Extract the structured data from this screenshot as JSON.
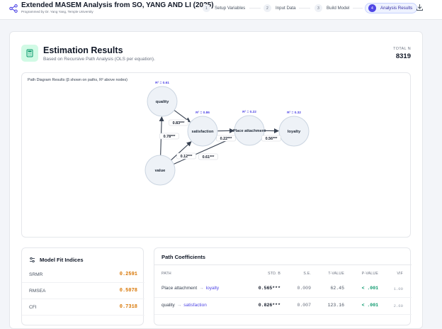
{
  "header": {
    "title": "Extended MASEM Analysis from SO, YANG AND LI (2025)",
    "subtitle": "Programmed by Dr. Yang Yang, Temple University",
    "steps": [
      {
        "num": "1",
        "label": "Setup Variables"
      },
      {
        "num": "2",
        "label": "Input Data"
      },
      {
        "num": "3",
        "label": "Build Model"
      },
      {
        "num": "4",
        "label": "Analysis Results"
      }
    ],
    "active_step": 4
  },
  "results": {
    "title": "Estimation Results",
    "subtitle": "Based on Recursive Path Analysis (OLS per equation).",
    "total_n_label": "TOTAL N",
    "total_n": "8319"
  },
  "diagram": {
    "title": "Path Diagram Results (β shown on paths, R² above nodes)",
    "nodes": [
      {
        "id": "quality",
        "label": "quality",
        "r2": "R² = 0.61"
      },
      {
        "id": "satisfaction",
        "label": "satisfaction",
        "r2": "R² = 0.86"
      },
      {
        "id": "place",
        "label": "Place attachment",
        "r2": "R² = 0.22"
      },
      {
        "id": "loyalty",
        "label": "loyalty",
        "r2": "R² = 0.32"
      },
      {
        "id": "value",
        "label": "value",
        "r2": ""
      }
    ],
    "edges": [
      {
        "from": "quality",
        "to": "satisfaction",
        "label": "0.83***"
      },
      {
        "from": "value",
        "to": "quality",
        "label": "0.78***"
      },
      {
        "from": "satisfaction",
        "to": "place",
        "label": "0.22***"
      },
      {
        "from": "place",
        "to": "loyalty",
        "label": "0.56***"
      },
      {
        "from": "value",
        "to": "satisfaction",
        "label": "0.12***"
      },
      {
        "from": "value",
        "to": "place",
        "label": "0.61***"
      }
    ]
  },
  "model_fit": {
    "title": "Model Fit Indices",
    "rows": [
      {
        "name": "SRMR",
        "value": "0.2591"
      },
      {
        "name": "RMSEA",
        "value": "0.5078"
      },
      {
        "name": "CFI",
        "value": "0.7318"
      }
    ]
  },
  "coefficients": {
    "title": "Path Coefficients",
    "columns": [
      "PATH",
      "STD. B",
      "S.E.",
      "T-VALUE",
      "P-VALUE",
      "VIF"
    ],
    "rows": [
      {
        "from": "Place attachment",
        "arrow": "→",
        "to": "loyalty",
        "std_b": "0.565***",
        "se": "0.009",
        "t": "62.45",
        "p": "< .001",
        "vif": "1.00"
      },
      {
        "from": "quality",
        "arrow": "→",
        "to": "satisfaction",
        "std_b": "0.826***",
        "se": "0.007",
        "t": "123.16",
        "p": "< .001",
        "vif": "2.60"
      }
    ]
  },
  "colors": {
    "accent": "#4f46e5",
    "fit_value": "#d97706",
    "p_value": "#059669",
    "node_fill": "#eef2f7",
    "node_stroke": "#cbd5e1"
  }
}
